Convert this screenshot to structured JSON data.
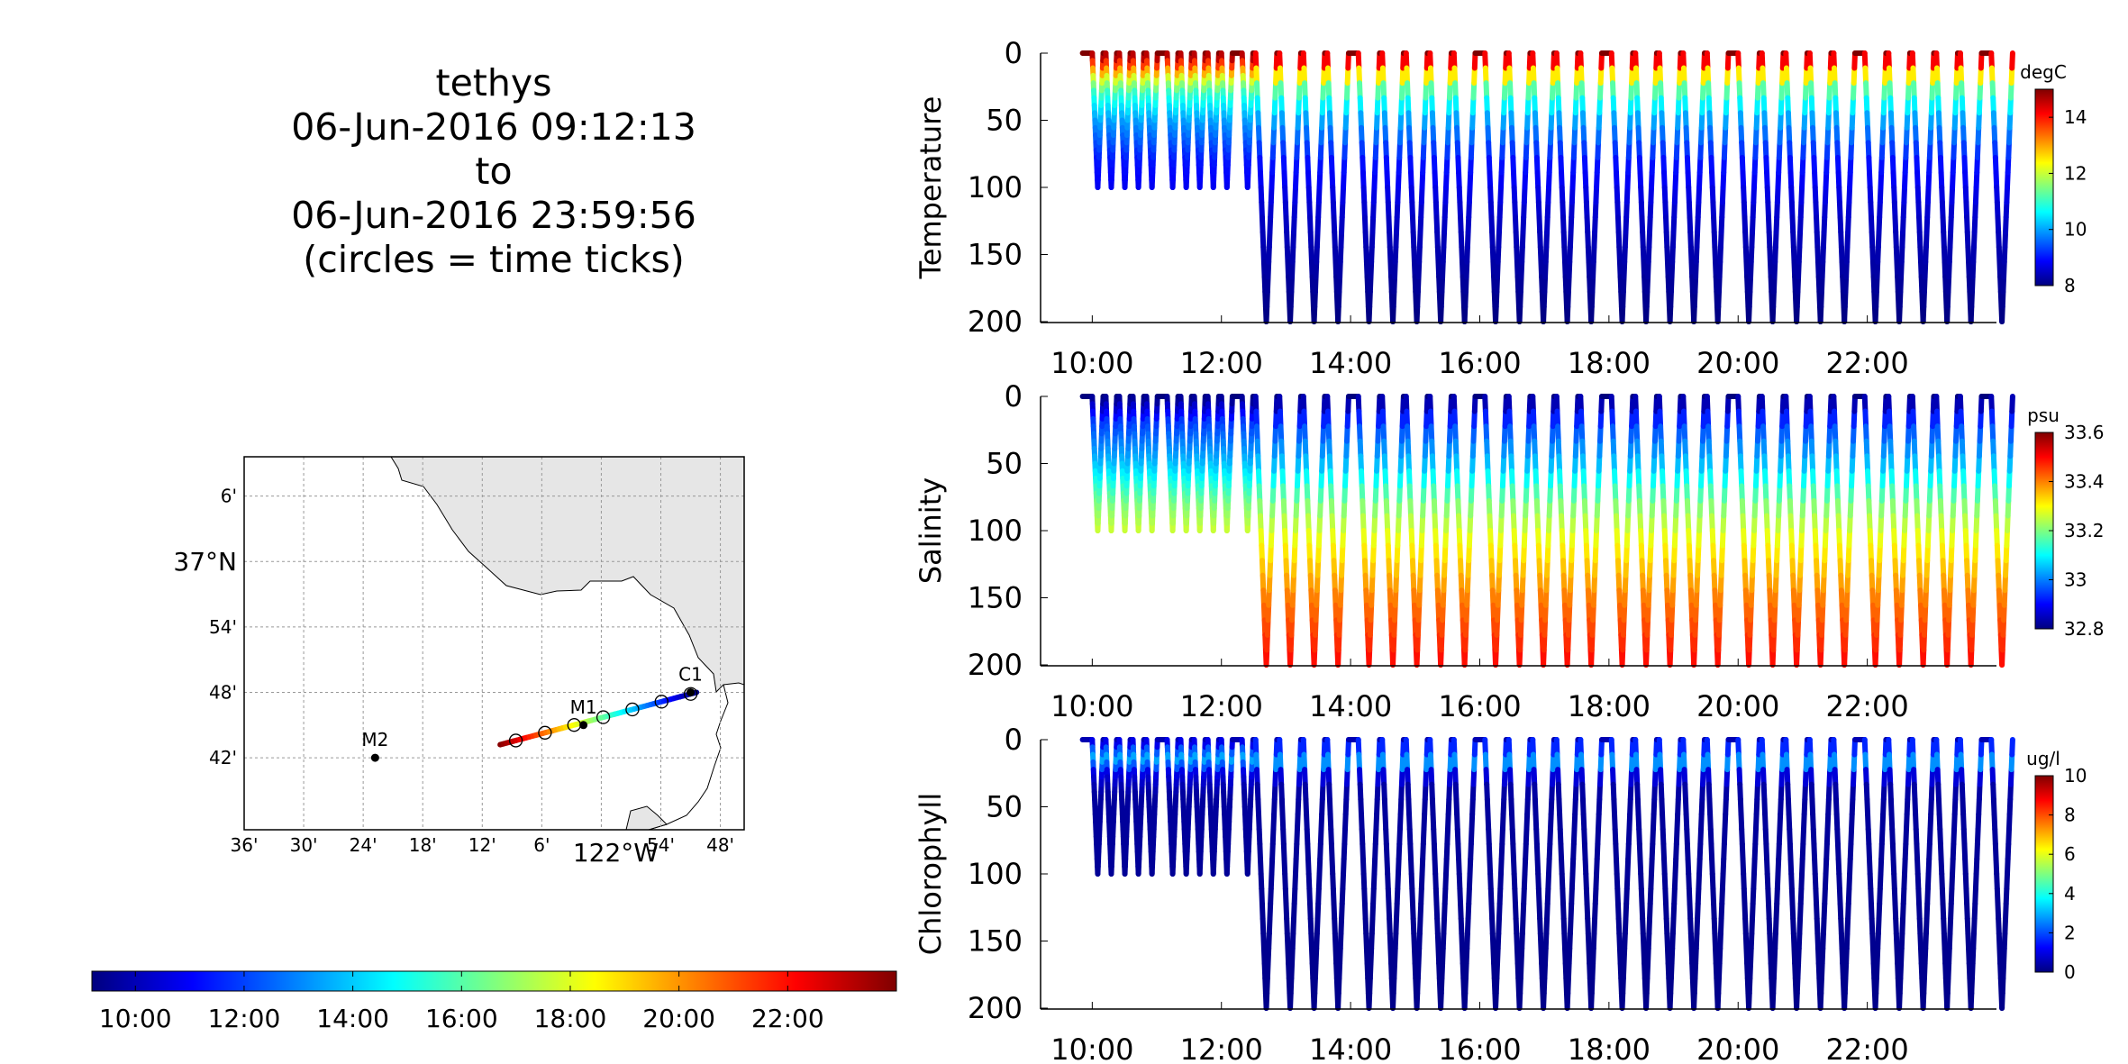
{
  "header": {
    "lines": [
      "tethys",
      "06-Jun-2016 09:12:13",
      "to",
      "06-Jun-2016 23:59:56",
      "(circles = time ticks)"
    ]
  },
  "colors": {
    "jet": [
      "#00007f",
      "#0000ff",
      "#007fff",
      "#00ffff",
      "#7fff7f",
      "#ffff00",
      "#ff7f00",
      "#ff0000",
      "#7f0000"
    ],
    "land": "#e6e6e6",
    "grid": "#999999"
  },
  "map": {
    "lat_labels": [
      "6'",
      "37°N",
      "54'",
      "48'",
      "42'"
    ],
    "lon_labels": [
      "36'",
      "30'",
      "24'",
      "18'",
      "12'",
      "6'",
      "122°W",
      "54'",
      "48'"
    ],
    "stations": [
      {
        "name": "M2",
        "lon": -122.38,
        "lat": 36.7
      },
      {
        "name": "M1",
        "lon": -122.03,
        "lat": 36.75
      },
      {
        "name": "C1",
        "lon": -121.85,
        "lat": 36.8
      }
    ],
    "track": {
      "start": {
        "lon": -122.17,
        "lat": 36.72
      },
      "end": {
        "lon": -121.84,
        "lat": 36.8
      },
      "time_tick_count": 7
    }
  },
  "time_colorbar": {
    "tick_labels": [
      "10:00",
      "12:00",
      "14:00",
      "16:00",
      "18:00",
      "20:00",
      "22:00"
    ]
  },
  "chart_data": [
    {
      "type": "scatter",
      "ylabel": "Temperature",
      "colorbar_unit": "degC",
      "colorbar_ticks": [
        8,
        10,
        12,
        14
      ],
      "clim": [
        8,
        15
      ],
      "ylim": [
        0,
        200
      ],
      "y_ticks": [
        0,
        50,
        100,
        150,
        200
      ],
      "x_ticks": [
        "10:00",
        "12:00",
        "14:00",
        "16:00",
        "18:00",
        "20:00",
        "22:00"
      ],
      "x_range_hours": [
        9.2,
        24.0
      ],
      "profile_depth": [
        {
          "until_hour": 12.3,
          "max_depth": 100
        },
        {
          "until_hour": 24.0,
          "max_depth": 200
        }
      ],
      "value_by_depth": [
        [
          0,
          15
        ],
        [
          10,
          13.5
        ],
        [
          20,
          12
        ],
        [
          30,
          11
        ],
        [
          50,
          10
        ],
        [
          80,
          9
        ],
        [
          120,
          8.5
        ],
        [
          200,
          8
        ]
      ]
    },
    {
      "type": "scatter",
      "ylabel": "Salinity",
      "colorbar_unit": "psu",
      "colorbar_ticks": [
        32.8,
        33,
        33.2,
        33.4,
        33.6
      ],
      "clim": [
        32.8,
        33.6
      ],
      "ylim": [
        0,
        200
      ],
      "y_ticks": [
        0,
        50,
        100,
        150,
        200
      ],
      "x_ticks": [
        "10:00",
        "12:00",
        "14:00",
        "16:00",
        "18:00",
        "20:00",
        "22:00"
      ],
      "x_range_hours": [
        9.2,
        24.0
      ],
      "profile_depth": [
        {
          "until_hour": 12.3,
          "max_depth": 100
        },
        {
          "until_hour": 24.0,
          "max_depth": 200
        }
      ],
      "value_by_depth": [
        [
          0,
          32.8
        ],
        [
          20,
          32.95
        ],
        [
          50,
          33.05
        ],
        [
          80,
          33.2
        ],
        [
          110,
          33.3
        ],
        [
          150,
          33.4
        ],
        [
          200,
          33.5
        ]
      ]
    },
    {
      "type": "scatter",
      "ylabel": "Chlorophyll",
      "colorbar_unit": "ug/l",
      "colorbar_ticks": [
        0,
        2,
        4,
        6,
        8,
        10
      ],
      "clim": [
        0,
        10
      ],
      "ylim": [
        0,
        200
      ],
      "y_ticks": [
        0,
        50,
        100,
        150,
        200
      ],
      "x_ticks": [
        "10:00",
        "12:00",
        "14:00",
        "16:00",
        "18:00",
        "20:00",
        "22:00"
      ],
      "x_range_hours": [
        9.2,
        24.0
      ],
      "profile_depth": [
        {
          "until_hour": 12.3,
          "max_depth": 100
        },
        {
          "until_hour": 24.0,
          "max_depth": 200
        }
      ],
      "value_by_depth": [
        [
          0,
          0.5
        ],
        [
          10,
          2.5
        ],
        [
          15,
          3.0
        ],
        [
          25,
          1.0
        ],
        [
          40,
          0.3
        ],
        [
          200,
          0.1
        ]
      ]
    }
  ]
}
